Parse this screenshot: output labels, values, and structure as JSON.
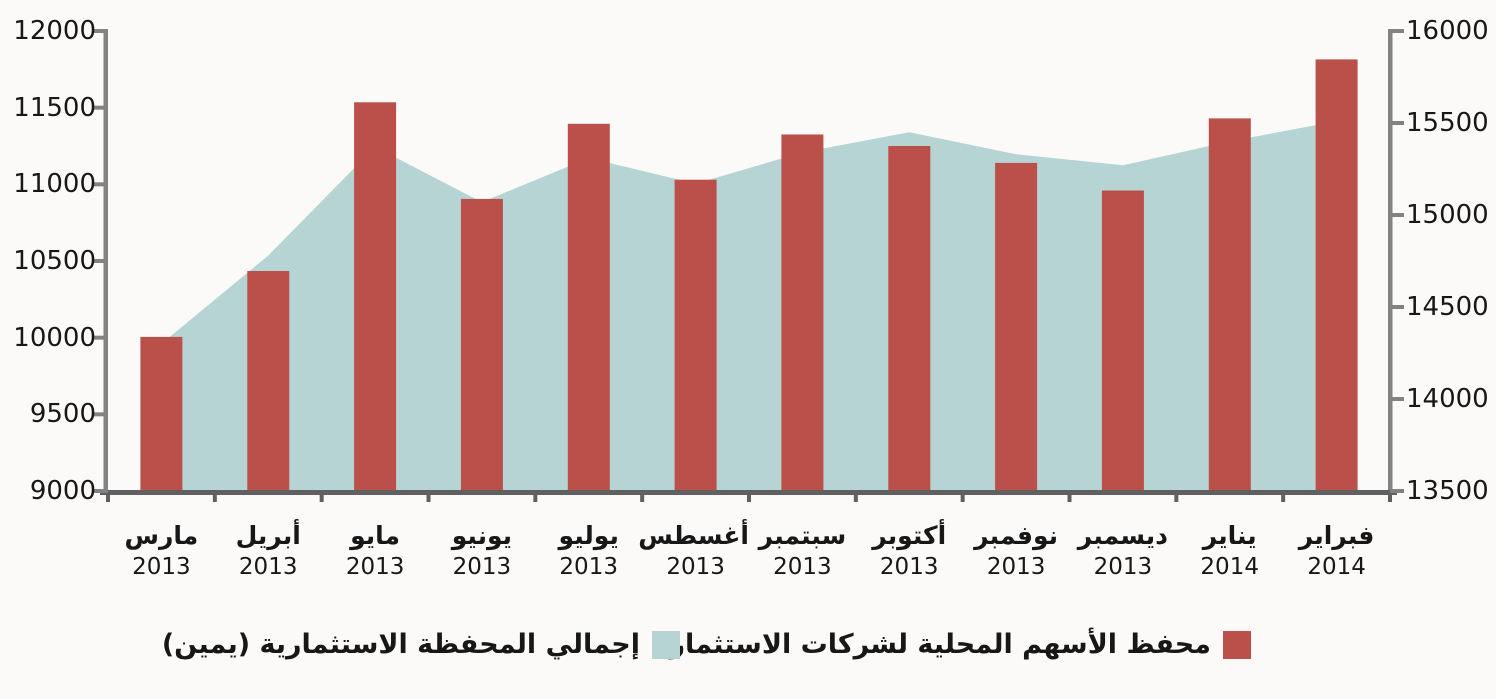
{
  "chart_data": {
    "type": "combo",
    "categories": [
      {
        "month": "مارس",
        "year": "2013"
      },
      {
        "month": "أبريل",
        "year": "2013"
      },
      {
        "month": "مايو",
        "year": "2013"
      },
      {
        "month": "يونيو",
        "year": "2013"
      },
      {
        "month": "يوليو",
        "year": "2013"
      },
      {
        "month": "أغسطس",
        "year": "2013"
      },
      {
        "month": "سبتمبر",
        "year": "2013"
      },
      {
        "month": "أكتوبر",
        "year": "2013"
      },
      {
        "month": "نوفمبر",
        "year": "2013"
      },
      {
        "month": "ديسمبر",
        "year": "2013"
      },
      {
        "month": "يناير",
        "year": "2014"
      },
      {
        "month": "فبراير",
        "year": "2014"
      }
    ],
    "series": [
      {
        "name": "محفظ الأسهم المحلية لشركات الاستثمار",
        "type": "bar",
        "axis": "left",
        "color": "#bb4f49",
        "values": [
          10005,
          10435,
          11535,
          10905,
          11395,
          11030,
          11325,
          11250,
          11140,
          10960,
          11430,
          11815
        ]
      },
      {
        "name": "إجمالي المحفظة الاستثمارية (يمين)",
        "type": "area",
        "axis": "right",
        "color": "#b5d4d3",
        "values": [
          14300,
          14780,
          15370,
          15070,
          15310,
          15170,
          15340,
          15450,
          15330,
          15270,
          15400,
          15510
        ]
      }
    ],
    "left_axis": {
      "min": 9000,
      "max": 12000,
      "step": 500,
      "ticks": [
        "12000",
        "11500",
        "11000",
        "10500",
        "10000",
        "9500",
        "9000"
      ]
    },
    "right_axis": {
      "min": 13500,
      "max": 16000,
      "step": 500,
      "ticks": [
        "16000",
        "15500",
        "15000",
        "14500",
        "14000",
        "13500"
      ]
    },
    "legend_position": "bottom",
    "grid": false,
    "colors": {
      "bar": "#bb4f49",
      "area": "#b5d4d3",
      "axis_line": "#828282",
      "bottom_axis_line": "#606060",
      "text": "#171717",
      "background": "#fbfaf8"
    }
  }
}
